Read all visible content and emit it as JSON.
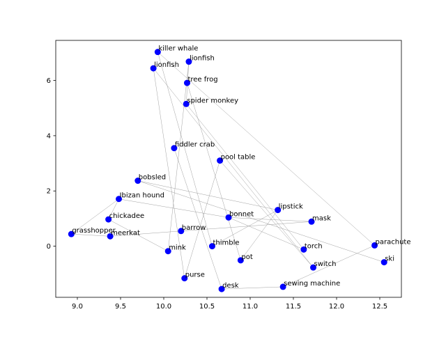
{
  "chart_data": {
    "type": "scatter",
    "title": "",
    "xlabel": "",
    "ylabel": "",
    "xlim": [
      8.75,
      12.75
    ],
    "ylim": [
      -1.85,
      7.45
    ],
    "xticks": [
      "9.0",
      "9.5",
      "10.0",
      "10.5",
      "11.0",
      "11.5",
      "12.0",
      "12.5"
    ],
    "yticks": [
      "0",
      "2",
      "4",
      "6"
    ],
    "xtick_values": [
      9.0,
      9.5,
      10.0,
      10.5,
      11.0,
      11.5,
      12.0,
      12.5
    ],
    "ytick_values": [
      0,
      2,
      4,
      6
    ],
    "grid": false,
    "point_color": "#0000ff",
    "line_color": "#a0a0a0",
    "points": [
      {
        "label": "killer whale",
        "x": 9.93,
        "y": 7.03
      },
      {
        "label": "lionfish",
        "x": 10.29,
        "y": 6.68
      },
      {
        "label": "lionfish",
        "x": 9.88,
        "y": 6.44
      },
      {
        "label": "tree frog",
        "x": 10.27,
        "y": 5.91
      },
      {
        "label": "spider monkey",
        "x": 10.26,
        "y": 5.15
      },
      {
        "label": "fiddler crab",
        "x": 10.12,
        "y": 3.55
      },
      {
        "label": "pool table",
        "x": 10.65,
        "y": 3.1
      },
      {
        "label": "bobsled",
        "x": 9.7,
        "y": 2.37
      },
      {
        "label": "Ibizan hound",
        "x": 9.48,
        "y": 1.71
      },
      {
        "label": "lipstick",
        "x": 11.32,
        "y": 1.31
      },
      {
        "label": "bonnet",
        "x": 10.75,
        "y": 1.04
      },
      {
        "label": "mask",
        "x": 11.71,
        "y": 0.89
      },
      {
        "label": "chickadee",
        "x": 9.36,
        "y": 0.97
      },
      {
        "label": "grasshopper",
        "x": 8.93,
        "y": 0.44
      },
      {
        "label": "meerkat",
        "x": 9.38,
        "y": 0.36
      },
      {
        "label": "barrow",
        "x": 10.2,
        "y": 0.55
      },
      {
        "label": "thimble",
        "x": 10.56,
        "y": 0.0
      },
      {
        "label": "torch",
        "x": 11.62,
        "y": -0.12
      },
      {
        "label": "parachute",
        "x": 12.44,
        "y": 0.03
      },
      {
        "label": "mink",
        "x": 10.05,
        "y": -0.18
      },
      {
        "label": "pot",
        "x": 10.89,
        "y": -0.51
      },
      {
        "label": "ski",
        "x": 12.55,
        "y": -0.58
      },
      {
        "label": "switch",
        "x": 11.73,
        "y": -0.77
      },
      {
        "label": "purse",
        "x": 10.24,
        "y": -1.16
      },
      {
        "label": "desk",
        "x": 10.67,
        "y": -1.55
      },
      {
        "label": "sewing machine",
        "x": 11.38,
        "y": -1.47
      }
    ],
    "edges": [
      [
        0,
        18
      ],
      [
        0,
        16
      ],
      [
        1,
        4
      ],
      [
        1,
        19
      ],
      [
        2,
        23
      ],
      [
        2,
        22
      ],
      [
        3,
        20
      ],
      [
        4,
        17
      ],
      [
        5,
        24
      ],
      [
        6,
        22
      ],
      [
        7,
        9
      ],
      [
        7,
        21
      ],
      [
        8,
        12
      ],
      [
        8,
        10
      ],
      [
        9,
        20
      ],
      [
        10,
        11
      ],
      [
        10,
        17
      ],
      [
        11,
        15
      ],
      [
        12,
        19
      ],
      [
        13,
        8
      ],
      [
        13,
        14
      ],
      [
        14,
        15
      ],
      [
        16,
        9
      ],
      [
        18,
        25
      ],
      [
        23,
        6
      ],
      [
        25,
        24
      ]
    ]
  }
}
